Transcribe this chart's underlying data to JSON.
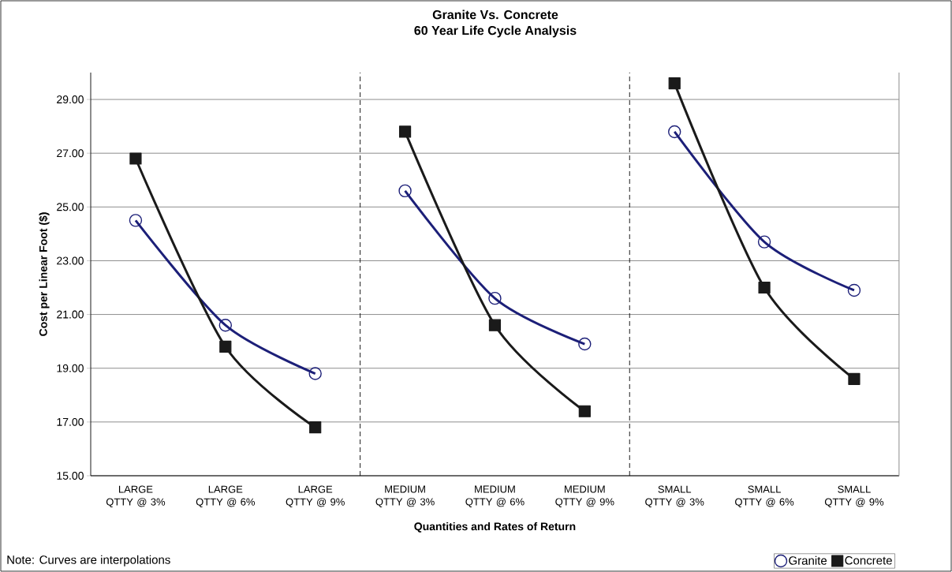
{
  "chart_data": {
    "type": "line",
    "title": "Granite Vs. Concrete",
    "subtitle": "60 Year Life Cycle Analysis",
    "xlabel": "Quantities and Rates of Return",
    "ylabel": "Cost per Linear Foot ($)",
    "categories": [
      "LARGE QTTY @ 3%",
      "LARGE QTTY @ 6%",
      "LARGE QTTY @ 9%",
      "MEDIUM QTTY @ 3%",
      "MEDIUM QTTY @ 6%",
      "MEDIUM QTTY @ 9%",
      "SMALL QTTY @ 3%",
      "SMALL QTTY @ 6%",
      "SMALL QTTY @ 9%"
    ],
    "series": [
      {
        "name": "Granite",
        "color": "#1c1f78",
        "marker": "circle",
        "values": [
          24.5,
          20.6,
          18.8,
          null,
          null,
          null,
          null,
          null,
          null
        ]
      },
      {
        "name": "Concrete",
        "color": "#1a1a1a",
        "marker": "square",
        "values": [
          26.8,
          19.8,
          16.8,
          null,
          null,
          null,
          null,
          null,
          null
        ]
      },
      {
        "color": "#1c1f78",
        "marker": "circle",
        "values": [
          null,
          null,
          null,
          25.6,
          21.6,
          19.9,
          null,
          null,
          null
        ]
      },
      {
        "color": "#1a1a1a",
        "marker": "square",
        "values": [
          null,
          null,
          null,
          27.8,
          20.6,
          17.4,
          null,
          null,
          null
        ]
      },
      {
        "color": "#1c1f78",
        "marker": "circle",
        "values": [
          null,
          null,
          null,
          null,
          null,
          null,
          27.8,
          23.7,
          21.9
        ]
      },
      {
        "color": "#1a1a1a",
        "marker": "square",
        "values": [
          null,
          null,
          null,
          null,
          null,
          null,
          29.6,
          22.0,
          18.6
        ]
      }
    ],
    "ylim": [
      15,
      30
    ],
    "yticks": [
      {
        "value": 15,
        "label": "15.00"
      },
      {
        "value": 17,
        "label": "17.00"
      },
      {
        "value": 19,
        "label": "19.00"
      },
      {
        "value": 21,
        "label": "21.00"
      },
      {
        "value": 23,
        "label": "23.00"
      },
      {
        "value": 25,
        "label": "25.00"
      },
      {
        "value": 27,
        "label": "27.00"
      },
      {
        "value": 29,
        "label": "29.00"
      }
    ],
    "grid": "y",
    "legend": "bottom right",
    "line_style": "solid",
    "annotations": [
      "Note: Curves are interpolations"
    ]
  }
}
